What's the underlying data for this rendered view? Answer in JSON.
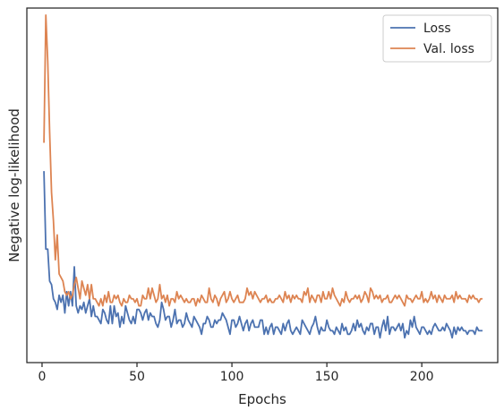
{
  "chart_data": {
    "type": "line",
    "title": "",
    "xlabel": "Epochs",
    "ylabel": "Negative log-likelihood",
    "xlim": [
      -8,
      240
    ],
    "ylim": [
      0,
      100
    ],
    "x_ticks": [
      "0",
      "50",
      "100",
      "150",
      "200"
    ],
    "x_tick_values": [
      0,
      50,
      100,
      150,
      200
    ],
    "y_tick_labels_shown": false,
    "grid": false,
    "legend_position": "top-right",
    "series": [
      {
        "name": "Loss",
        "color": "#4c72b0",
        "x": [
          1,
          2,
          3,
          4,
          5,
          6,
          7,
          8,
          9,
          10,
          11,
          12,
          13,
          14,
          15,
          16,
          17,
          18,
          19,
          20,
          21,
          22,
          23,
          24,
          25,
          26,
          27,
          28,
          29,
          30,
          31,
          32,
          33,
          34,
          35,
          36,
          37,
          38,
          39,
          40,
          41,
          42,
          43,
          44,
          45,
          46,
          47,
          48,
          49,
          50,
          51,
          52,
          53,
          54,
          55,
          56,
          57,
          58,
          59,
          60,
          61,
          62,
          63,
          64,
          65,
          66,
          67,
          68,
          69,
          70,
          71,
          72,
          73,
          74,
          75,
          76,
          77,
          78,
          79,
          80,
          81,
          82,
          83,
          84,
          85,
          86,
          87,
          88,
          89,
          90,
          91,
          92,
          93,
          94,
          95,
          96,
          97,
          98,
          99,
          100,
          101,
          102,
          103,
          104,
          105,
          106,
          107,
          108,
          109,
          110,
          111,
          112,
          113,
          114,
          115,
          116,
          117,
          118,
          119,
          120,
          121,
          122,
          123,
          124,
          125,
          126,
          127,
          128,
          129,
          130,
          131,
          132,
          133,
          134,
          135,
          136,
          137,
          138,
          139,
          140,
          141,
          142,
          143,
          144,
          145,
          146,
          147,
          148,
          149,
          150,
          151,
          152,
          153,
          154,
          155,
          156,
          157,
          158,
          159,
          160,
          161,
          162,
          163,
          164,
          165,
          166,
          167,
          168,
          169,
          170,
          171,
          172,
          173,
          174,
          175,
          176,
          177,
          178,
          179,
          180,
          181,
          182,
          183,
          184,
          185,
          186,
          187,
          188,
          189,
          190,
          191,
          192,
          193,
          194,
          195,
          196,
          197,
          198,
          199,
          200,
          201,
          202,
          203,
          204,
          205,
          206,
          207,
          208,
          209,
          210,
          211,
          212,
          213,
          214,
          215,
          216,
          217,
          218,
          219,
          220,
          221,
          222,
          223,
          224,
          225,
          226,
          227,
          228,
          229,
          230,
          231,
          232
        ],
        "y": [
          54,
          32,
          32,
          23,
          22,
          18,
          17,
          15,
          19,
          17,
          19,
          14,
          20,
          16,
          20,
          16,
          27,
          16,
          14,
          16,
          15,
          17,
          14,
          16,
          18,
          13,
          16,
          13,
          13,
          12,
          11,
          15,
          14,
          12,
          11,
          16,
          11,
          16,
          13,
          14,
          10,
          13,
          11,
          16,
          14,
          12,
          11,
          13,
          11,
          15,
          15,
          14,
          12,
          14,
          15,
          12,
          14,
          13,
          13,
          11,
          10,
          12,
          17,
          15,
          12,
          13,
          13,
          10,
          12,
          15,
          11,
          12,
          12,
          10,
          11,
          14,
          12,
          11,
          10,
          13,
          12,
          11,
          10,
          8,
          11,
          11,
          13,
          12,
          10,
          10,
          12,
          11,
          12,
          12,
          14,
          13,
          12,
          10,
          8,
          12,
          12,
          10,
          11,
          13,
          11,
          9,
          11,
          12,
          9,
          11,
          12,
          10,
          10,
          10,
          12,
          12,
          8,
          10,
          8,
          10,
          11,
          8,
          10,
          10,
          9,
          8,
          11,
          9,
          11,
          12,
          9,
          8,
          9,
          10,
          9,
          8,
          12,
          11,
          10,
          9,
          8,
          10,
          11,
          13,
          10,
          8,
          10,
          9,
          9,
          12,
          10,
          9,
          9,
          8,
          10,
          9,
          8,
          11,
          9,
          10,
          8,
          8,
          9,
          11,
          9,
          12,
          10,
          11,
          9,
          8,
          10,
          9,
          11,
          11,
          8,
          10,
          10,
          7,
          10,
          12,
          9,
          13,
          8,
          10,
          10,
          9,
          10,
          11,
          9,
          11,
          7,
          9,
          8,
          12,
          10,
          13,
          10,
          9,
          8,
          10,
          10,
          9,
          8,
          9,
          8,
          10,
          11,
          10,
          9,
          9,
          10,
          9,
          11,
          10,
          9,
          7,
          10,
          8,
          10,
          9,
          10,
          9,
          9,
          8,
          9,
          9,
          9,
          8,
          10,
          9,
          9,
          9
        ]
      },
      {
        "name": "Val. loss",
        "color": "#dd8452",
        "x": [
          1,
          2,
          3,
          4,
          5,
          6,
          7,
          8,
          9,
          10,
          11,
          12,
          13,
          14,
          15,
          16,
          17,
          18,
          19,
          20,
          21,
          22,
          23,
          24,
          25,
          26,
          27,
          28,
          29,
          30,
          31,
          32,
          33,
          34,
          35,
          36,
          37,
          38,
          39,
          40,
          41,
          42,
          43,
          44,
          45,
          46,
          47,
          48,
          49,
          50,
          51,
          52,
          53,
          54,
          55,
          56,
          57,
          58,
          59,
          60,
          61,
          62,
          63,
          64,
          65,
          66,
          67,
          68,
          69,
          70,
          71,
          72,
          73,
          74,
          75,
          76,
          77,
          78,
          79,
          80,
          81,
          82,
          83,
          84,
          85,
          86,
          87,
          88,
          89,
          90,
          91,
          92,
          93,
          94,
          95,
          96,
          97,
          98,
          99,
          100,
          101,
          102,
          103,
          104,
          105,
          106,
          107,
          108,
          109,
          110,
          111,
          112,
          113,
          114,
          115,
          116,
          117,
          118,
          119,
          120,
          121,
          122,
          123,
          124,
          125,
          126,
          127,
          128,
          129,
          130,
          131,
          132,
          133,
          134,
          135,
          136,
          137,
          138,
          139,
          140,
          141,
          142,
          143,
          144,
          145,
          146,
          147,
          148,
          149,
          150,
          151,
          152,
          153,
          154,
          155,
          156,
          157,
          158,
          159,
          160,
          161,
          162,
          163,
          164,
          165,
          166,
          167,
          168,
          169,
          170,
          171,
          172,
          173,
          174,
          175,
          176,
          177,
          178,
          179,
          180,
          181,
          182,
          183,
          184,
          185,
          186,
          187,
          188,
          189,
          190,
          191,
          192,
          193,
          194,
          195,
          196,
          197,
          198,
          199,
          200,
          201,
          202,
          203,
          204,
          205,
          206,
          207,
          208,
          209,
          210,
          211,
          212,
          213,
          214,
          215,
          216,
          217,
          218,
          219,
          220,
          221,
          222,
          223,
          224,
          225,
          226,
          227,
          228,
          229,
          230,
          231,
          232
        ],
        "y": [
          62,
          98,
          85,
          65,
          48,
          40,
          29,
          36,
          25,
          24,
          23,
          20,
          19,
          20,
          18,
          19,
          22,
          24,
          21,
          18,
          23,
          21,
          19,
          22,
          18,
          22,
          18,
          18,
          17,
          16,
          18,
          16,
          19,
          17,
          20,
          17,
          17,
          19,
          18,
          19,
          17,
          16,
          18,
          17,
          17,
          19,
          18,
          18,
          17,
          18,
          16,
          16,
          19,
          18,
          18,
          21,
          18,
          21,
          19,
          17,
          18,
          22,
          18,
          19,
          17,
          19,
          16,
          18,
          18,
          17,
          20,
          18,
          19,
          18,
          17,
          18,
          17,
          17,
          18,
          18,
          16,
          18,
          17,
          19,
          18,
          17,
          17,
          21,
          18,
          17,
          19,
          18,
          16,
          18,
          19,
          20,
          17,
          18,
          20,
          18,
          17,
          18,
          19,
          17,
          17,
          17,
          18,
          21,
          19,
          20,
          18,
          20,
          19,
          18,
          17,
          18,
          18,
          19,
          17,
          18,
          17,
          17,
          18,
          18,
          19,
          18,
          17,
          20,
          18,
          19,
          17,
          19,
          18,
          19,
          18,
          18,
          17,
          20,
          19,
          21,
          17,
          19,
          18,
          17,
          19,
          19,
          17,
          20,
          18,
          18,
          20,
          18,
          21,
          19,
          18,
          17,
          16,
          18,
          17,
          20,
          18,
          17,
          18,
          18,
          19,
          18,
          19,
          17,
          18,
          20,
          19,
          17,
          21,
          20,
          18,
          19,
          18,
          19,
          17,
          18,
          18,
          19,
          17,
          17,
          18,
          19,
          18,
          19,
          18,
          17,
          16,
          19,
          18,
          18,
          17,
          18,
          19,
          18,
          18,
          20,
          17,
          18,
          17,
          18,
          20,
          18,
          19,
          17,
          19,
          18,
          17,
          19,
          18,
          18,
          18,
          19,
          17,
          20,
          18,
          19,
          18,
          18,
          18,
          17,
          19,
          18,
          19,
          18,
          18,
          17,
          18,
          18
        ]
      }
    ]
  }
}
